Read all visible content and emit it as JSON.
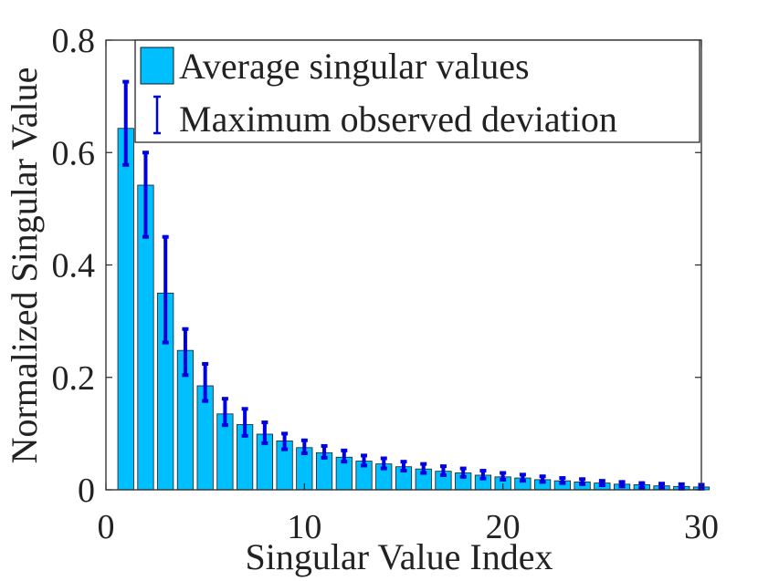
{
  "chart_data": {
    "type": "bar",
    "title": "",
    "xlabel": "Singular Value Index",
    "ylabel": "Normalized Singular Value",
    "xlim": [
      0,
      30
    ],
    "ylim": [
      0,
      0.8
    ],
    "xticks": [
      0,
      10,
      20,
      30
    ],
    "yticks": [
      0,
      0.2,
      0.4,
      0.6,
      0.8
    ],
    "xtick_labels": [
      "0",
      "10",
      "20",
      "30"
    ],
    "ytick_labels": [
      "0",
      "0.2",
      "0.4",
      "0.6",
      "0.8"
    ],
    "grid": false,
    "legend_position": "top-right",
    "colors": {
      "bar": "#00bfff",
      "bar_edge": "#1a1a1a",
      "error": "#0000e0"
    },
    "legend": {
      "bar_label": "Average singular values",
      "error_label": "Maximum observed deviation"
    },
    "x": [
      1,
      2,
      3,
      4,
      5,
      6,
      7,
      8,
      9,
      10,
      11,
      12,
      13,
      14,
      15,
      16,
      17,
      18,
      19,
      20,
      21,
      22,
      23,
      24,
      25,
      26,
      27,
      28,
      29,
      30
    ],
    "values": [
      0.643,
      0.542,
      0.35,
      0.248,
      0.185,
      0.135,
      0.116,
      0.099,
      0.087,
      0.075,
      0.066,
      0.058,
      0.051,
      0.046,
      0.041,
      0.037,
      0.033,
      0.03,
      0.026,
      0.023,
      0.021,
      0.018,
      0.016,
      0.014,
      0.012,
      0.01,
      0.009,
      0.007,
      0.006,
      0.005
    ],
    "err_low": [
      0.578,
      0.45,
      0.262,
      0.204,
      0.158,
      0.115,
      0.096,
      0.083,
      0.072,
      0.065,
      0.057,
      0.05,
      0.043,
      0.038,
      0.034,
      0.03,
      0.026,
      0.023,
      0.02,
      0.018,
      0.016,
      0.014,
      0.012,
      0.01,
      0.008,
      0.006,
      0.004,
      0.003,
      0.002,
      0.002
    ],
    "err_high": [
      0.726,
      0.6,
      0.45,
      0.286,
      0.224,
      0.162,
      0.144,
      0.12,
      0.1,
      0.088,
      0.078,
      0.07,
      0.061,
      0.056,
      0.05,
      0.046,
      0.042,
      0.038,
      0.034,
      0.03,
      0.027,
      0.024,
      0.021,
      0.019,
      0.016,
      0.014,
      0.012,
      0.011,
      0.01,
      0.009
    ]
  }
}
